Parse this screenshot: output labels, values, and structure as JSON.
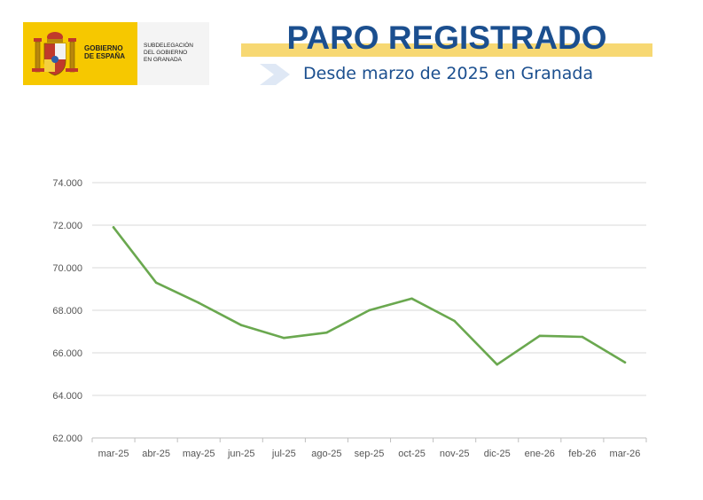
{
  "header": {
    "logo_line1": "GOBIERNO",
    "logo_line2": "DE ESPAÑA",
    "sub_line1": "SUBDELEGACIÓN",
    "sub_line2": "DEL GOBIERNO",
    "sub_line3": "EN GRANADA",
    "title": "PARO REGISTRADO",
    "subtitle": "Desde marzo de 2025 en Granada"
  },
  "colors": {
    "line": "#6aa84f",
    "title": "#1b4f8f",
    "brand_yellow": "#f6c800",
    "grid": "#d9d9d9"
  },
  "chart_data": {
    "type": "line",
    "title": "",
    "xlabel": "",
    "ylabel": "",
    "categories": [
      "mar-25",
      "abr-25",
      "may-25",
      "jun-25",
      "jul-25",
      "ago-25",
      "sep-25",
      "oct-25",
      "nov-25",
      "dic-25",
      "ene-26",
      "feb-26",
      "mar-26"
    ],
    "series": [
      {
        "values": [
          71900,
          69300,
          68350,
          67300,
          66700,
          66950,
          68000,
          68550,
          67500,
          65450,
          66800,
          66750,
          65550
        ]
      }
    ],
    "ylim": [
      62000,
      74000
    ],
    "yticks": [
      62000,
      64000,
      66000,
      68000,
      70000,
      72000,
      74000
    ],
    "ytick_labels": [
      "62.000",
      "64.000",
      "66.000",
      "68.000",
      "70.000",
      "72.000",
      "74.000"
    ],
    "grid": true,
    "legend": "none"
  }
}
